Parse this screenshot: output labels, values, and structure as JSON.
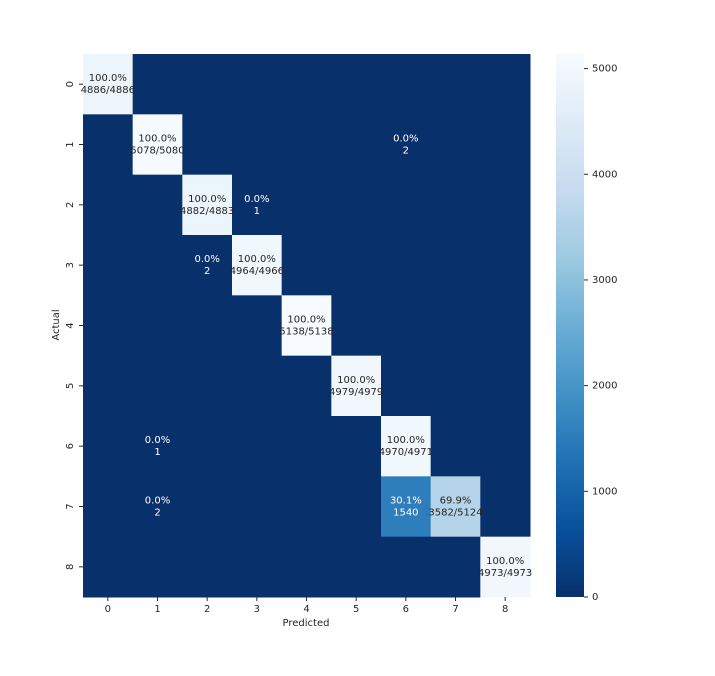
{
  "chart_data": {
    "type": "heatmap",
    "x_label": "Predicted",
    "y_label": "Actual",
    "x_categories": [
      "0",
      "1",
      "2",
      "3",
      "4",
      "5",
      "6",
      "7",
      "8"
    ],
    "y_categories": [
      "0",
      "1",
      "2",
      "3",
      "4",
      "5",
      "6",
      "7",
      "8"
    ],
    "values": [
      [
        4886,
        0,
        0,
        0,
        0,
        0,
        0,
        0,
        0
      ],
      [
        0,
        5078,
        0,
        0,
        0,
        0,
        2,
        0,
        0
      ],
      [
        0,
        0,
        4882,
        1,
        0,
        0,
        0,
        0,
        0
      ],
      [
        0,
        0,
        2,
        4964,
        0,
        0,
        0,
        0,
        0
      ],
      [
        0,
        0,
        0,
        0,
        5138,
        0,
        0,
        0,
        0
      ],
      [
        0,
        0,
        0,
        0,
        0,
        4979,
        0,
        0,
        0
      ],
      [
        0,
        1,
        0,
        0,
        0,
        0,
        4970,
        0,
        0
      ],
      [
        0,
        2,
        0,
        0,
        0,
        0,
        1540,
        3582,
        0
      ],
      [
        0,
        0,
        0,
        0,
        0,
        0,
        0,
        0,
        4973
      ]
    ],
    "value_labels": [
      [
        [
          "100.0%",
          "4886/4886"
        ],
        null,
        null,
        null,
        null,
        null,
        null,
        null,
        null
      ],
      [
        null,
        [
          "100.0%",
          "5078/5080"
        ],
        null,
        null,
        null,
        null,
        [
          "0.0%",
          "2"
        ],
        null,
        null
      ],
      [
        null,
        null,
        [
          "100.0%",
          "4882/4883"
        ],
        [
          "0.0%",
          "1"
        ],
        null,
        null,
        null,
        null,
        null
      ],
      [
        null,
        null,
        [
          "0.0%",
          "2"
        ],
        [
          "100.0%",
          "4964/4966"
        ],
        null,
        null,
        null,
        null,
        null
      ],
      [
        null,
        null,
        null,
        null,
        [
          "100.0%",
          "5138/5138"
        ],
        null,
        null,
        null,
        null
      ],
      [
        null,
        null,
        null,
        null,
        null,
        [
          "100.0%",
          "4979/4979"
        ],
        null,
        null,
        null
      ],
      [
        null,
        [
          "0.0%",
          "1"
        ],
        null,
        null,
        null,
        null,
        [
          "100.0%",
          "4970/4971"
        ],
        null,
        null
      ],
      [
        null,
        [
          "0.0%",
          "2"
        ],
        null,
        null,
        null,
        null,
        [
          "30.1%",
          "1540"
        ],
        [
          "69.9%",
          "3582/5124"
        ],
        null
      ],
      [
        null,
        null,
        null,
        null,
        null,
        null,
        null,
        null,
        [
          "100.0%",
          "4973/4973"
        ]
      ]
    ],
    "colormap": "Blues_r",
    "zlim": [
      0,
      5138
    ],
    "zticks": [
      0,
      1000,
      2000,
      3000,
      4000,
      5000
    ]
  }
}
